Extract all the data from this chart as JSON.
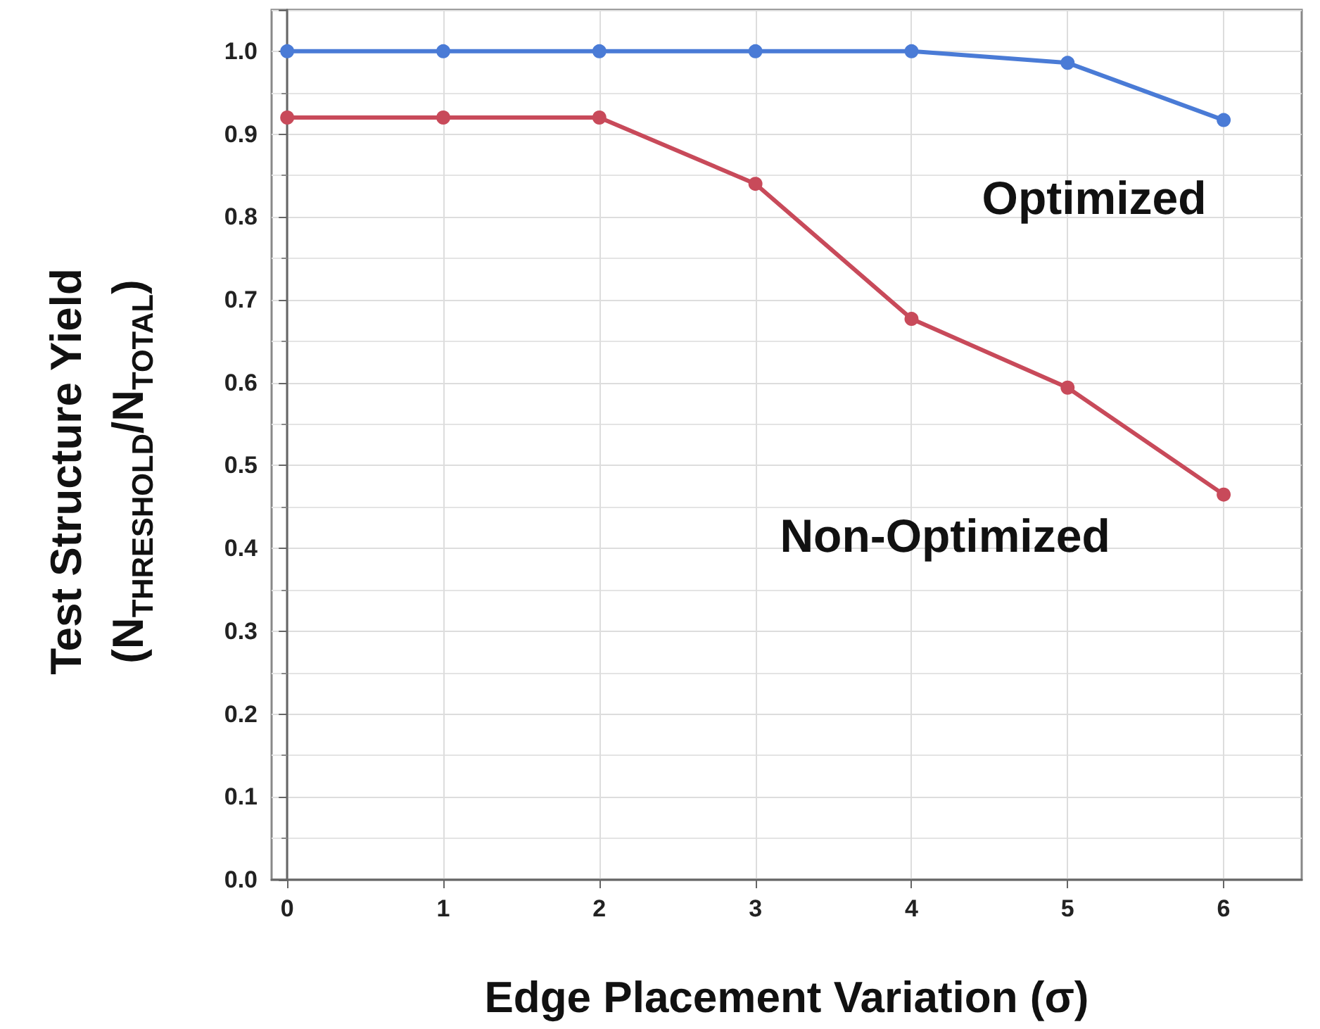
{
  "chart_data": {
    "type": "line",
    "xlabel": "Edge Placement Variation (σ)",
    "ylabel": "Test Structure Yield\n(N$_{THRESHOLD}$/N$_{TOTAL}$)",
    "x": [
      0,
      1,
      2,
      3,
      4,
      5,
      6
    ],
    "series": [
      {
        "name": "Optimized",
        "color": "#4a7bd6",
        "values": [
          1.0,
          1.0,
          1.0,
          1.0,
          1.0,
          0.986,
          0.917
        ]
      },
      {
        "name": "Non-Optimized",
        "color": "#c84a5a",
        "values": [
          0.92,
          0.92,
          0.92,
          0.84,
          0.677,
          0.594,
          0.465
        ]
      }
    ],
    "xlim": [
      -0.1,
      6.5
    ],
    "xticks": [
      0,
      1,
      2,
      3,
      4,
      5,
      6
    ],
    "ylim": [
      0,
      1.05
    ],
    "yticks": [
      {
        "value": 0,
        "label": "0.0"
      },
      0.1,
      0.2,
      0.3,
      0.4,
      0.5,
      0.6,
      0.7,
      0.8,
      0.9,
      {
        "value": 1,
        "label": "1.0"
      }
    ],
    "grid": true,
    "legend": false,
    "marker": "circle",
    "line_style": "solid"
  }
}
